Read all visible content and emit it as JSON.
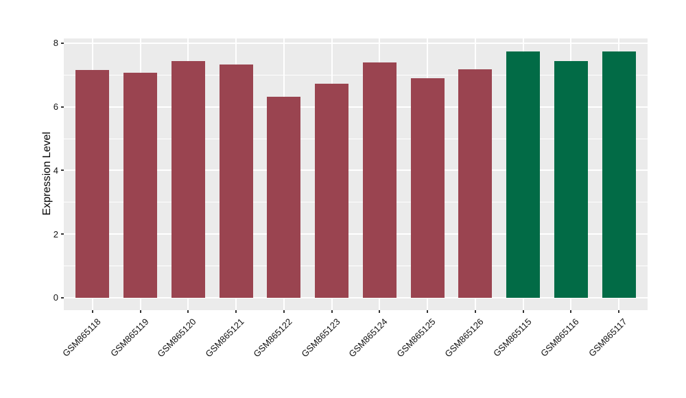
{
  "chart_data": {
    "type": "bar",
    "title": "",
    "xlabel": "",
    "ylabel": "Expression Level",
    "categories": [
      "GSM865118",
      "GSM865119",
      "GSM865120",
      "GSM865121",
      "GSM865122",
      "GSM865123",
      "GSM865124",
      "GSM865125",
      "GSM865126",
      "GSM865115",
      "GSM865116",
      "GSM865117"
    ],
    "values": [
      7.15,
      7.08,
      7.44,
      7.32,
      6.31,
      6.72,
      7.4,
      6.89,
      7.18,
      7.75,
      7.43,
      7.75
    ],
    "bar_colors": [
      "#9A4450",
      "#9A4450",
      "#9A4450",
      "#9A4450",
      "#9A4450",
      "#9A4450",
      "#9A4450",
      "#9A4450",
      "#9A4450",
      "#026B46",
      "#026B46",
      "#026B46"
    ],
    "group_colors": {
      "maroon": "#9A4450",
      "green": "#026B46"
    },
    "y_major_ticks": [
      0,
      2,
      4,
      6,
      8
    ],
    "y_minor_ticks": [
      1,
      3,
      5,
      7
    ],
    "ylim": [
      -0.39,
      8.15
    ],
    "x_label_rotation_deg": 45,
    "grid": "on",
    "legend_position": "none",
    "panel_background": "#EBEBEB",
    "gridline_color": "#FFFFFF",
    "plot_background": "#FFFFFF"
  }
}
